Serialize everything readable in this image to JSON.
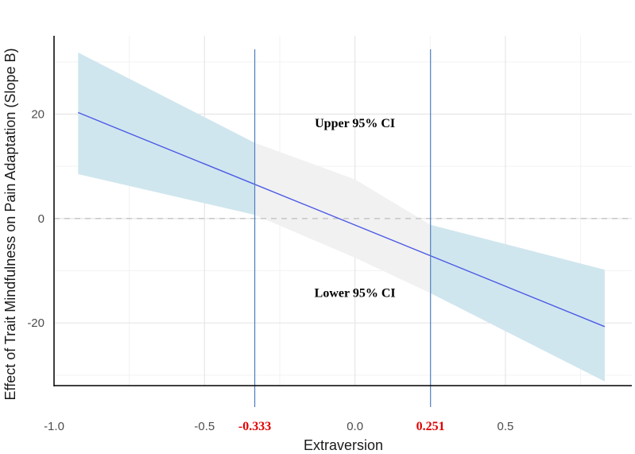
{
  "chart_data": {
    "type": "line",
    "xlabel": "Extraversion",
    "ylabel": "Effect of Trait Mindfulness on Pain Adaptation (Slope B)",
    "xlim": [
      -1.0,
      0.92
    ],
    "ylim": [
      -32,
      35
    ],
    "x_ticks": [
      -1.0,
      -0.5,
      0.0,
      0.5
    ],
    "x_tick_labels": [
      "-1.0",
      "-0.5",
      "0.0",
      "0.5"
    ],
    "y_ticks": [
      -20,
      0,
      20
    ],
    "y_tick_labels": [
      "-20",
      "0",
      "20"
    ],
    "grid": true,
    "series": [
      {
        "role": "estimate",
        "x": [
          -0.92,
          0.83
        ],
        "y": [
          20.3,
          -20.7
        ]
      },
      {
        "role": "confidence-band",
        "x": [
          -0.92,
          -0.333,
          0.0,
          0.251,
          0.83
        ],
        "lower": [
          8.5,
          0.7,
          -7.5,
          -14.3,
          -31.2
        ],
        "upper": [
          31.8,
          14.5,
          7.5,
          -1.2,
          -9.8
        ]
      }
    ],
    "reference_line_y": 0,
    "johnson_neyman_points": [
      {
        "x": -0.333,
        "label": "-0.333"
      },
      {
        "x": 0.251,
        "label": "0.251"
      }
    ],
    "annotations": [
      {
        "text": "Upper 95% CI",
        "x": 0.0,
        "y": 17.5
      },
      {
        "text": "Lower 95% CI",
        "x": 0.0,
        "y": -15
      }
    ],
    "colors": {
      "band_significant": "#d0e6ee",
      "band_nonsignificant": "#f1f1f1",
      "line": "#4d5be6",
      "jn_line": "#4f7fc2",
      "jn_label": "#e00000",
      "zero_line": "#bdbdbd",
      "grid_major": "#e6e6e6",
      "grid_minor": "#f2f2f2",
      "axis": "#000000"
    }
  }
}
